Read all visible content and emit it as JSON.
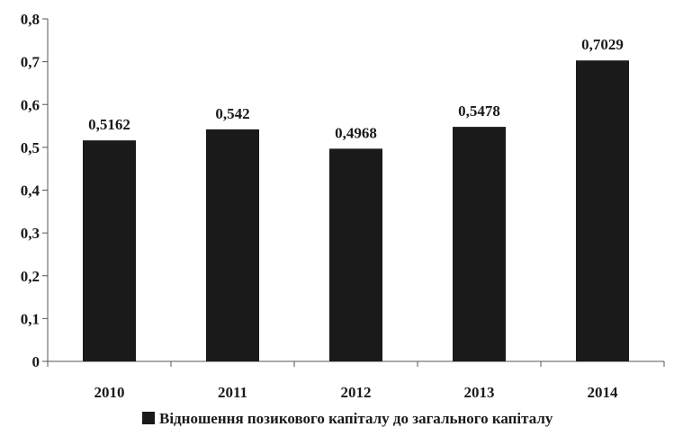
{
  "chart_data": {
    "type": "bar",
    "title": "",
    "xlabel": "",
    "ylabel": "",
    "categories": [
      "2010",
      "2011",
      "2012",
      "2013",
      "2014"
    ],
    "series": [
      {
        "name": "Відношення позикового капіталу до загального капіталу",
        "values": [
          0.5162,
          0.542,
          0.4968,
          0.5478,
          0.7029
        ],
        "value_labels": [
          "0,5162",
          "0,542",
          "0,4968",
          "0,5478",
          "0,7029"
        ],
        "color": "#1a1a1a"
      }
    ],
    "ylim": [
      0,
      0.8
    ],
    "yticks": [
      0,
      0.1,
      0.2,
      0.3,
      0.4,
      0.5,
      0.6,
      0.7,
      0.8
    ],
    "ytick_labels": [
      "0",
      "0,1",
      "0,2",
      "0,3",
      "0,4",
      "0,5",
      "0,6",
      "0,7",
      "0,8"
    ],
    "grid": false,
    "legend_position": "bottom"
  },
  "colors": {
    "bar": "#1a1a1a",
    "axis": "#555555",
    "text": "#1a1a1a"
  }
}
